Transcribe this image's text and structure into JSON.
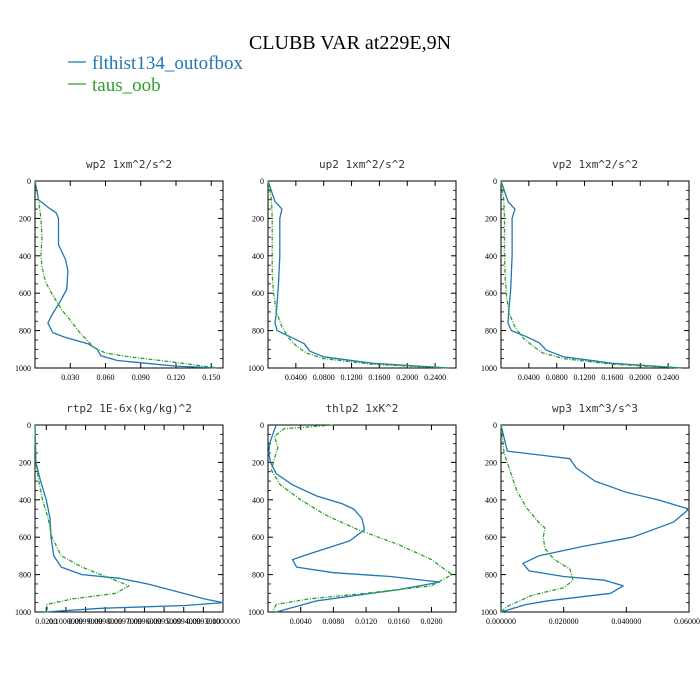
{
  "figure": {
    "title": "CLUBB VAR at229E,9N",
    "legend": [
      {
        "name": "flthist134_outofbox",
        "color": "#1f77b4"
      },
      {
        "name": "taus_oob",
        "color": "#2ca02c"
      }
    ]
  },
  "chart_data": [
    {
      "type": "line",
      "title": "wp2  1xm^2/s^2",
      "ylim": [
        1000,
        0
      ],
      "xlim": [
        0,
        0.16
      ],
      "xticks": [
        "0.030",
        "0.060",
        "0.090",
        "0.120",
        "0.150"
      ],
      "yticks": [
        "0",
        "200",
        "400",
        "600",
        "800",
        "1000"
      ],
      "series": [
        {
          "name": "flthist134_outofbox",
          "color": "#1f77b4",
          "x": [
            0.0,
            0.003,
            0.012,
            0.018,
            0.02,
            0.02,
            0.023,
            0.026,
            0.028,
            0.027,
            0.02,
            0.014,
            0.011,
            0.015,
            0.025,
            0.045,
            0.053,
            0.056,
            0.07,
            0.12,
            0.155
          ],
          "y": [
            0,
            100,
            145,
            170,
            200,
            340,
            380,
            420,
            480,
            580,
            660,
            720,
            760,
            810,
            835,
            870,
            900,
            935,
            960,
            990,
            1000
          ]
        },
        {
          "name": "taus_oob",
          "color": "#2ca02c",
          "x": [
            0.0,
            0.003,
            0.005,
            0.006,
            0.005,
            0.006,
            0.009,
            0.015,
            0.023,
            0.032,
            0.038,
            0.044,
            0.05,
            0.06,
            0.08,
            0.12,
            0.155
          ],
          "y": [
            0,
            100,
            200,
            300,
            400,
            460,
            540,
            610,
            690,
            760,
            810,
            850,
            890,
            920,
            940,
            970,
            1000
          ]
        }
      ]
    },
    {
      "type": "line",
      "title": "up2  1xm^2/s^2",
      "ylim": [
        1000,
        0
      ],
      "xlim": [
        0,
        0.27
      ],
      "xticks": [
        "0.0400",
        "0.0800",
        "0.1200",
        "0.1600",
        "0.2000",
        "0.2400"
      ],
      "yticks": [
        "0",
        "200",
        "400",
        "600",
        "800",
        "1000"
      ],
      "series": [
        {
          "name": "flthist134_outofbox",
          "color": "#1f77b4",
          "x": [
            0.0,
            0.01,
            0.02,
            0.017,
            0.017,
            0.015,
            0.012,
            0.01,
            0.013,
            0.03,
            0.052,
            0.06,
            0.08,
            0.15,
            0.26
          ],
          "y": [
            0,
            110,
            150,
            200,
            400,
            560,
            700,
            760,
            800,
            830,
            870,
            910,
            940,
            975,
            1000
          ]
        },
        {
          "name": "taus_oob",
          "color": "#2ca02c",
          "x": [
            0.0,
            0.005,
            0.006,
            0.006,
            0.006,
            0.008,
            0.012,
            0.02,
            0.03,
            0.04,
            0.055,
            0.08,
            0.15,
            0.26
          ],
          "y": [
            0,
            100,
            200,
            400,
            500,
            600,
            700,
            780,
            840,
            880,
            920,
            950,
            980,
            1000
          ]
        }
      ]
    },
    {
      "type": "line",
      "title": "vp2  1xm^2/s^2",
      "ylim": [
        1000,
        0
      ],
      "xlim": [
        0,
        0.27
      ],
      "xticks": [
        "0.0400",
        "0.0800",
        "0.1200",
        "0.1600",
        "0.2000",
        "0.2400"
      ],
      "yticks": [
        "0",
        "200",
        "400",
        "600",
        "800",
        "1000"
      ],
      "series": [
        {
          "name": "flthist134_outofbox",
          "color": "#1f77b4",
          "x": [
            0.0,
            0.01,
            0.02,
            0.016,
            0.016,
            0.014,
            0.011,
            0.01,
            0.015,
            0.035,
            0.055,
            0.065,
            0.09,
            0.16,
            0.26
          ],
          "y": [
            0,
            110,
            150,
            200,
            400,
            580,
            700,
            760,
            800,
            830,
            865,
            905,
            940,
            975,
            1000
          ]
        },
        {
          "name": "taus_oob",
          "color": "#2ca02c",
          "x": [
            0.0,
            0.004,
            0.005,
            0.005,
            0.006,
            0.008,
            0.012,
            0.02,
            0.032,
            0.045,
            0.06,
            0.09,
            0.16,
            0.26
          ],
          "y": [
            0,
            100,
            200,
            400,
            520,
            620,
            710,
            780,
            840,
            880,
            920,
            950,
            980,
            1000
          ]
        }
      ]
    },
    {
      "type": "line",
      "title": "rtp2  1E-6x(kg/kg)^2",
      "ylim": [
        1000,
        0
      ],
      "xlim": [
        0,
        1.0
      ],
      "xticks": [
        "0.0200",
        "0.1000000",
        "0.0999000",
        "0.0998000",
        "0.0997000",
        "0.0996000",
        "0.0995000",
        "0.0994000",
        "0.0993000",
        "0.1000000"
      ],
      "yticks": [
        "0",
        "200",
        "400",
        "600",
        "800",
        "1000"
      ],
      "series": [
        {
          "name": "flthist134_outofbox",
          "color": "#1f77b4",
          "x": [
            0.0,
            0.005,
            0.03,
            0.06,
            0.08,
            0.085,
            0.1,
            0.14,
            0.25,
            0.45,
            0.6,
            0.75,
            0.9,
            1.0,
            0.8,
            0.35,
            0.05
          ],
          "y": [
            0,
            200,
            300,
            400,
            500,
            600,
            700,
            760,
            800,
            820,
            850,
            890,
            930,
            950,
            965,
            980,
            1000
          ]
        },
        {
          "name": "taus_oob",
          "color": "#2ca02c",
          "x": [
            0.0,
            0.005,
            0.02,
            0.04,
            0.07,
            0.09,
            0.14,
            0.25,
            0.4,
            0.5,
            0.43,
            0.2,
            0.06,
            0.07
          ],
          "y": [
            0,
            200,
            300,
            400,
            500,
            600,
            700,
            760,
            820,
            860,
            900,
            930,
            960,
            1000
          ]
        }
      ]
    },
    {
      "type": "line",
      "title": "thlp2  1xK^2",
      "ylim": [
        1000,
        0
      ],
      "xlim": [
        0,
        0.023
      ],
      "xticks": [
        "0.0040",
        "0.0080",
        "0.0120",
        "0.0160",
        "0.0200"
      ],
      "yticks": [
        "0",
        "200",
        "400",
        "600",
        "800",
        "1000"
      ],
      "series": [
        {
          "name": "flthist134_outofbox",
          "color": "#1f77b4",
          "x": [
            0.001,
            0.0005,
            0.0002,
            0.0001,
            0.0003,
            0.001,
            0.003,
            0.006,
            0.009,
            0.0105,
            0.0115,
            0.0118,
            0.01,
            0.005,
            0.003,
            0.0035,
            0.008,
            0.015,
            0.021,
            0.016,
            0.006,
            0.001
          ],
          "y": [
            0,
            60,
            100,
            150,
            200,
            260,
            320,
            380,
            420,
            450,
            500,
            560,
            620,
            690,
            720,
            760,
            790,
            810,
            840,
            880,
            940,
            1000
          ]
        },
        {
          "name": "taus_oob",
          "color": "#2ca02c",
          "x": [
            0.008,
            0.002,
            0.0008,
            0.0012,
            0.0008,
            0.0004,
            0.0015,
            0.004,
            0.007,
            0.011,
            0.016,
            0.02,
            0.0225,
            0.02,
            0.012,
            0.005,
            0.001,
            0.0005
          ],
          "y": [
            0,
            20,
            60,
            120,
            180,
            240,
            320,
            400,
            480,
            560,
            640,
            720,
            800,
            860,
            900,
            930,
            960,
            1000
          ]
        }
      ]
    },
    {
      "type": "line",
      "title": "wp3  1xm^3/s^3",
      "ylim": [
        1000,
        0
      ],
      "xlim": [
        0,
        0.06
      ],
      "xticks": [
        "0.000000",
        "0.020000",
        "0.040000",
        "0.060000"
      ],
      "yticks": [
        "0",
        "200",
        "400",
        "600",
        "800",
        "1000"
      ],
      "series": [
        {
          "name": "flthist134_outofbox",
          "color": "#1f77b4",
          "x": [
            0.0,
            0.002,
            0.012,
            0.022,
            0.024,
            0.03,
            0.04,
            0.05,
            0.06,
            0.055,
            0.042,
            0.026,
            0.012,
            0.007,
            0.009,
            0.02,
            0.033,
            0.039,
            0.035,
            0.015,
            0.008,
            0.004,
            0.0
          ],
          "y": [
            0,
            140,
            160,
            180,
            230,
            300,
            360,
            400,
            450,
            520,
            600,
            650,
            700,
            740,
            780,
            810,
            830,
            860,
            900,
            940,
            960,
            980,
            1000
          ]
        },
        {
          "name": "taus_oob",
          "color": "#2ca02c",
          "x": [
            0.0,
            0.001,
            0.003,
            0.005,
            0.008,
            0.012,
            0.014,
            0.0135,
            0.014,
            0.017,
            0.022,
            0.023,
            0.02,
            0.01,
            0.006,
            0.002,
            0.0
          ],
          "y": [
            0,
            150,
            250,
            350,
            440,
            520,
            550,
            600,
            660,
            720,
            770,
            830,
            870,
            910,
            940,
            970,
            1000
          ]
        }
      ]
    }
  ]
}
